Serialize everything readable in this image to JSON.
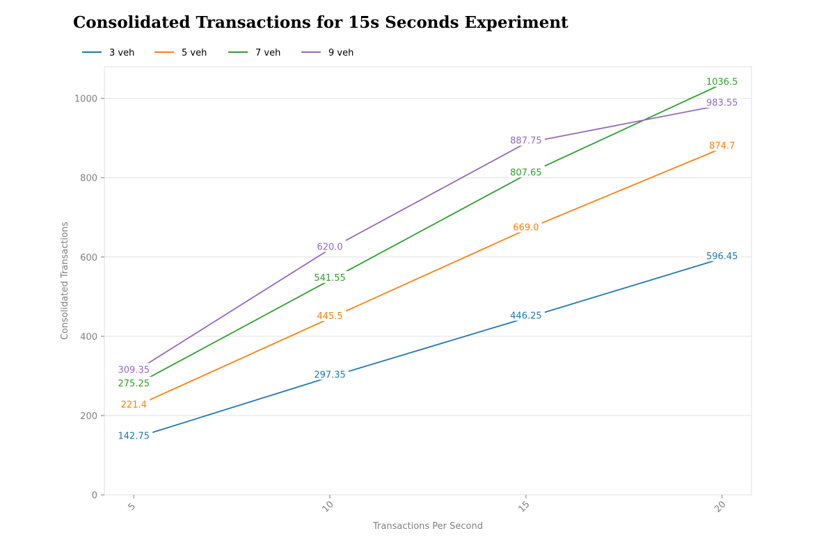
{
  "chart_data": {
    "type": "line",
    "title": "Consolidated Transactions for 15s Seconds Experiment",
    "xlabel": "Transactions Per Second",
    "ylabel": "Consolidated Transactions",
    "x": [
      5,
      10,
      15,
      20
    ],
    "x_tick_labels": [
      "5",
      "10",
      "15",
      "20"
    ],
    "y_ticks": [
      0,
      200,
      400,
      600,
      800,
      1000
    ],
    "y_tick_labels": [
      "0",
      "200",
      "400",
      "600",
      "800",
      "1000"
    ],
    "xlim": [
      4.25,
      20.75
    ],
    "ylim": [
      0,
      1080
    ],
    "grid": "horizontal",
    "legend_position": "top-left",
    "series": [
      {
        "name": "3 veh",
        "color": "#1f77b4",
        "values": [
          142.75,
          297.35,
          446.25,
          596.45
        ],
        "labels": [
          "142.75",
          "297.35",
          "446.25",
          "596.45"
        ]
      },
      {
        "name": "5 veh",
        "color": "#ff7f0e",
        "values": [
          221.4,
          445.5,
          669.0,
          874.7
        ],
        "labels": [
          "221.4",
          "445.5",
          "669.0",
          "874.7"
        ]
      },
      {
        "name": "7 veh",
        "color": "#2ca02c",
        "values": [
          275.25,
          541.55,
          807.65,
          1036.5
        ],
        "labels": [
          "275.25",
          "541.55",
          "807.65",
          "1036.5"
        ]
      },
      {
        "name": "9 veh",
        "color": "#9467bd",
        "values": [
          309.35,
          620.0,
          887.75,
          983.55
        ],
        "labels": [
          "309.35",
          "620.0",
          "887.75",
          "983.55"
        ]
      }
    ]
  }
}
